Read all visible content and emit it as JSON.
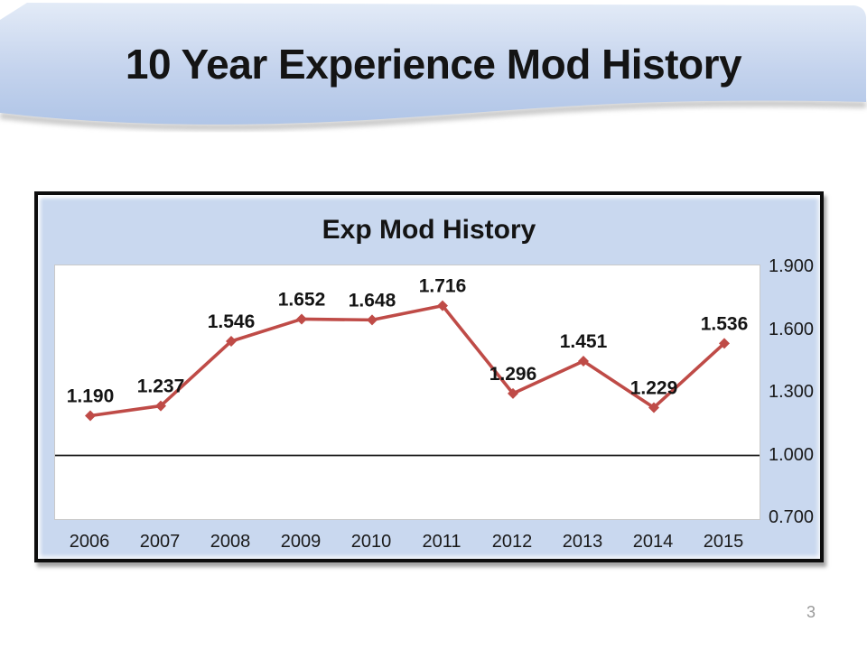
{
  "header": {
    "title": "10 Year Experience Mod History"
  },
  "chart": {
    "title": "Exp Mod History"
  },
  "chart_data": {
    "type": "line",
    "title": "Exp Mod History",
    "categories": [
      "2006",
      "2007",
      "2008",
      "2009",
      "2010",
      "2011",
      "2012",
      "2013",
      "2014",
      "2015"
    ],
    "values": [
      1.19,
      1.237,
      1.546,
      1.652,
      1.648,
      1.716,
      1.296,
      1.451,
      1.229,
      1.536
    ],
    "data_labels": [
      "1.190",
      "1.237",
      "1.546",
      "1.652",
      "1.648",
      "1.716",
      "1.296",
      "1.451",
      "1.229",
      "1.536"
    ],
    "xlabel": "",
    "ylabel": "",
    "ylim": [
      0.7,
      1.9
    ],
    "yticks": [
      1.9,
      1.6,
      1.3,
      1.0,
      0.7
    ],
    "ytick_labels": [
      "1.900",
      "1.600",
      "1.300",
      "1.000",
      "0.700"
    ],
    "ytick_side": "right",
    "baseline_value": 1.0,
    "grid": false,
    "legend": "none",
    "marker": "diamond",
    "line_color": "#bf4b47",
    "baseline_color": "#1a1a1a"
  },
  "footer": {
    "page_number": "3"
  },
  "colors": {
    "banner_top": "#e3ebf7",
    "banner_mid": "#c4d3ed",
    "banner_bottom": "#b0c5e7",
    "banner_shadow": "#8e8e8e",
    "chart_bg": "#c9d8ef",
    "plot_bg": "#ffffff",
    "text": "#141414",
    "page_number_gray": "#9a9a9a"
  }
}
